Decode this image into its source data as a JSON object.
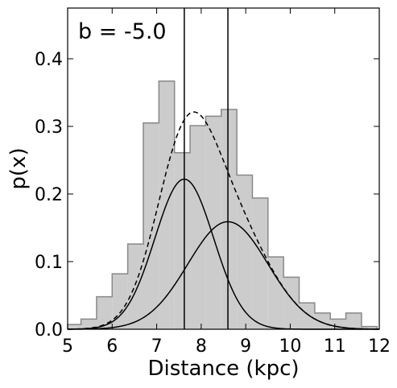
{
  "chart_data": {
    "type": "histogram",
    "xlabel": "Distance (kpc)",
    "ylabel": "p(x)",
    "annotation": "b = -5.0",
    "xlim": [
      5,
      12
    ],
    "ylim": [
      0,
      0.475
    ],
    "xticks": [
      5,
      6,
      7,
      8,
      9,
      10,
      11,
      12
    ],
    "yticks": [
      0.0,
      0.1,
      0.2,
      0.3,
      0.4
    ],
    "ytick_labels": [
      "0.0",
      "0.1",
      "0.2",
      "0.3",
      "0.4"
    ],
    "histogram": {
      "bin_edges": [
        5.0,
        5.3,
        5.65,
        6.0,
        6.35,
        6.7,
        7.05,
        7.4,
        7.75,
        8.1,
        8.45,
        8.8,
        9.15,
        9.5,
        9.85,
        10.2,
        10.55,
        10.9,
        11.25,
        11.6,
        11.95
      ],
      "values": [
        0.007,
        0.015,
        0.048,
        0.082,
        0.126,
        0.305,
        0.367,
        0.261,
        0.301,
        0.315,
        0.325,
        0.228,
        0.194,
        0.107,
        0.077,
        0.039,
        0.024,
        0.015,
        0.024,
        0.004
      ],
      "fill_color": "#cccccc",
      "edge_color": "#888888"
    },
    "curves": [
      {
        "style": "solid",
        "mean": 7.62,
        "sigma": 0.66,
        "peak": 0.222
      },
      {
        "style": "solid",
        "mean": 8.6,
        "sigma": 0.9,
        "peak": 0.159
      },
      {
        "style": "dashed",
        "components_sum": true
      }
    ],
    "vertical_lines": [
      7.62,
      8.6
    ]
  }
}
